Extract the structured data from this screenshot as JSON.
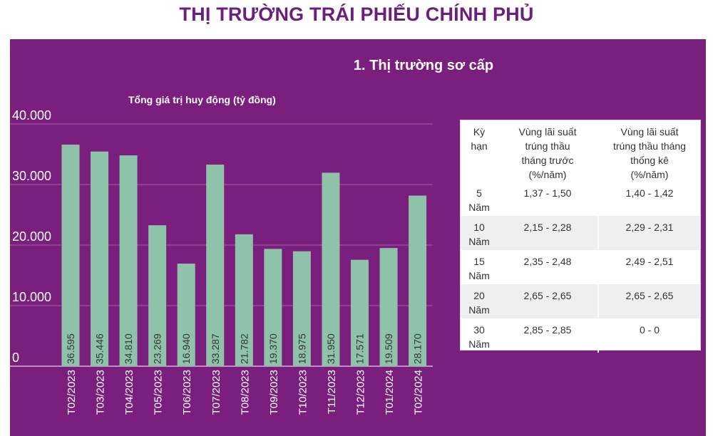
{
  "page_title": "THỊ TRƯỜNG TRÁI PHIẾU CHÍNH PHỦ",
  "section_title": "1. Thị trường sơ cấp",
  "colors": {
    "title": "#6b1f7c",
    "panel_background": "#7a1f7e",
    "bar": "#8fc3a9",
    "bar_label": "#333333"
  },
  "chart_data": {
    "type": "bar",
    "title": "Tổng giá trị huy động (tỷ đồng)",
    "categories": [
      "T02/2023",
      "T03/2023",
      "T04/2023",
      "T05/2023",
      "T06/2023",
      "T07/2023",
      "T08/2023",
      "T09/2023",
      "T10/2023",
      "T11/2023",
      "T12/2023",
      "T01/2024",
      "T02/2024"
    ],
    "values": [
      36595,
      35446,
      34810,
      23269,
      16940,
      33287,
      21782,
      19370,
      18975,
      31950,
      17571,
      19509,
      28170
    ],
    "value_labels": [
      "36.595",
      "35.446",
      "34.810",
      "23.269",
      "16.940",
      "33.287",
      "21.782",
      "19.370",
      "18.975",
      "31.950",
      "17.571",
      "19.509",
      "28.170"
    ],
    "y_ticks": [
      0,
      10000,
      20000,
      30000,
      40000
    ],
    "y_tick_labels": [
      "0",
      "10.000",
      "20.000",
      "30.000",
      "40.000"
    ],
    "ylim": [
      0,
      40000
    ],
    "grid": true
  },
  "rates_table": {
    "headers": [
      "Kỳ hạn",
      "Vùng lãi suất trúng thầu tháng trước (%/năm)",
      "Vùng lãi suất trúng thầu tháng thống kê (%/năm)"
    ],
    "rows": [
      {
        "term": "5 Năm",
        "prev": "1,37 - 1,50",
        "current": "1,40 - 1,42"
      },
      {
        "term": "10 Năm",
        "prev": "2,15 - 2,28",
        "current": "2,29 - 2,31"
      },
      {
        "term": "15 Năm",
        "prev": "2,35 - 2,48",
        "current": "2,49 - 2,51"
      },
      {
        "term": "20 Năm",
        "prev": "2,65 - 2,65",
        "current": "2,65 - 2,65"
      },
      {
        "term": "30 Năm",
        "prev": "2,85 - 2,85",
        "current": "0 - 0"
      }
    ]
  }
}
